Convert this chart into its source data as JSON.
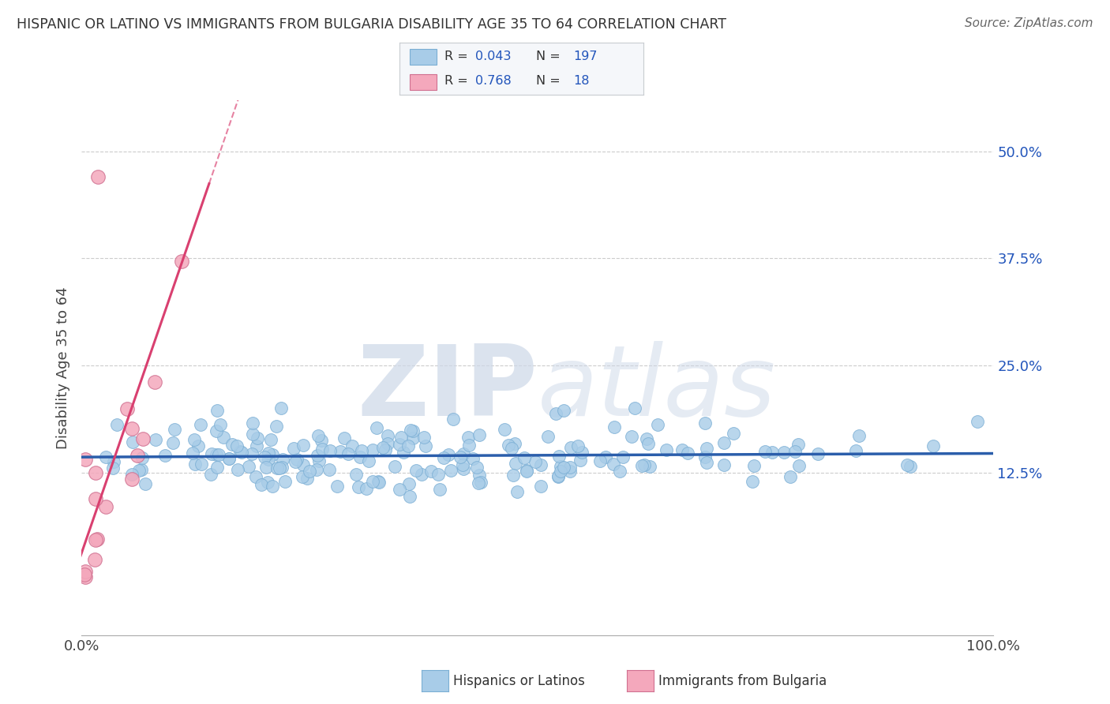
{
  "title": "HISPANIC OR LATINO VS IMMIGRANTS FROM BULGARIA DISABILITY AGE 35 TO 64 CORRELATION CHART",
  "source": "Source: ZipAtlas.com",
  "ylabel": "Disability Age 35 to 64",
  "blue_R": 0.043,
  "blue_N": 197,
  "pink_R": 0.768,
  "pink_N": 18,
  "blue_color": "#A8CCE8",
  "pink_color": "#F4A8BC",
  "blue_line_color": "#2B5EAB",
  "pink_line_color": "#D94070",
  "blue_edge": "#7aaed4",
  "pink_edge": "#d07090",
  "xlim": [
    0.0,
    1.0
  ],
  "ylim": [
    -0.065,
    0.56
  ],
  "yticks": [
    0.0,
    0.125,
    0.25,
    0.375,
    0.5
  ],
  "ytick_labels": [
    "",
    "12.5%",
    "25.0%",
    "37.5%",
    "50.0%"
  ],
  "xtick_labels": [
    "0.0%",
    "100.0%"
  ],
  "legend_label_blue": "Hispanics or Latinos",
  "legend_label_pink": "Immigrants from Bulgaria",
  "background_color": "#ffffff",
  "grid_color": "#cccccc",
  "watermark_color": "#cdd8e8",
  "seed": 42
}
